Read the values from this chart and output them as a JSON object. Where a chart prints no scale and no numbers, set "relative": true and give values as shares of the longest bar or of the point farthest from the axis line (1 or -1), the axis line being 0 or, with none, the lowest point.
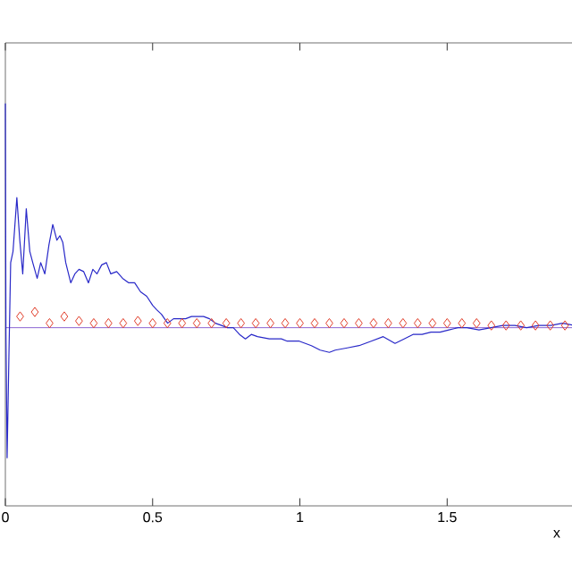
{
  "chart_data": {
    "type": "line",
    "relative": true,
    "xlabel": "x",
    "xlim": [
      0,
      1.93
    ],
    "xticks": [
      0,
      0.5,
      1,
      1.5
    ],
    "series": [
      {
        "color": "#2828c8",
        "marker": "none",
        "x": [
          0,
          0.002,
          0.006,
          0.012,
          0.018,
          0.026,
          0.039,
          0.049,
          0.059,
          0.071,
          0.083,
          0.093,
          0.108,
          0.12,
          0.134,
          0.148,
          0.161,
          0.175,
          0.185,
          0.195,
          0.205,
          0.222,
          0.236,
          0.25,
          0.266,
          0.282,
          0.297,
          0.311,
          0.327,
          0.343,
          0.358,
          0.378,
          0.398,
          0.419,
          0.439,
          0.459,
          0.48,
          0.5,
          0.514,
          0.53,
          0.551,
          0.571,
          0.591,
          0.612,
          0.632,
          0.652,
          0.673,
          0.693,
          0.713,
          0.734,
          0.754,
          0.774,
          0.795,
          0.815,
          0.835,
          0.856,
          0.896,
          0.937,
          0.957,
          0.998,
          1.039,
          1.069,
          1.1,
          1.12,
          1.161,
          1.201,
          1.242,
          1.283,
          1.323,
          1.354,
          1.384,
          1.415,
          1.445,
          1.476,
          1.506,
          1.537,
          1.567,
          1.608,
          1.649,
          1.689,
          1.73,
          1.77,
          1.811,
          1.852,
          1.892,
          1.93
        ],
        "values": [
          1,
          -0.03,
          -0.58,
          -0.13,
          0.29,
          0.34,
          0.58,
          0.39,
          0.24,
          0.53,
          0.34,
          0.29,
          0.22,
          0.29,
          0.24,
          0.37,
          0.46,
          0.39,
          0.41,
          0.38,
          0.29,
          0.2,
          0.24,
          0.26,
          0.25,
          0.2,
          0.26,
          0.24,
          0.28,
          0.29,
          0.24,
          0.25,
          0.22,
          0.2,
          0.2,
          0.16,
          0.14,
          0.1,
          0.08,
          0.06,
          0.02,
          0.04,
          0.04,
          0.04,
          0.05,
          0.05,
          0.05,
          0.04,
          0.02,
          0.01,
          0.0,
          0.0,
          -0.03,
          -0.05,
          -0.03,
          -0.04,
          -0.05,
          -0.05,
          -0.06,
          -0.06,
          -0.08,
          -0.1,
          -0.11,
          -0.1,
          -0.09,
          -0.08,
          -0.06,
          -0.04,
          -0.07,
          -0.05,
          -0.03,
          -0.03,
          -0.02,
          -0.02,
          -0.01,
          0.0,
          0.0,
          -0.01,
          0.0,
          0.01,
          0.01,
          0.0,
          0.01,
          0.01,
          0.02,
          0.01
        ]
      },
      {
        "color": "#e03c28",
        "type": "scatter",
        "marker": "diamond",
        "x": [
          0.05,
          0.1,
          0.15,
          0.2,
          0.25,
          0.3,
          0.35,
          0.4,
          0.45,
          0.5,
          0.55,
          0.6,
          0.65,
          0.7,
          0.75,
          0.8,
          0.85,
          0.9,
          0.95,
          1.0,
          1.05,
          1.1,
          1.15,
          1.2,
          1.25,
          1.3,
          1.35,
          1.4,
          1.45,
          1.5,
          1.55,
          1.6,
          1.65,
          1.7,
          1.75,
          1.8,
          1.85,
          1.9
        ],
        "values": [
          0.05,
          0.07,
          0.02,
          0.05,
          0.03,
          0.02,
          0.02,
          0.02,
          0.03,
          0.02,
          0.02,
          0.02,
          0.02,
          0.02,
          0.02,
          0.02,
          0.02,
          0.02,
          0.02,
          0.02,
          0.02,
          0.02,
          0.02,
          0.02,
          0.02,
          0.02,
          0.02,
          0.02,
          0.02,
          0.02,
          0.02,
          0.02,
          0.01,
          0.01,
          0.01,
          0.01,
          0.01,
          0.01
        ]
      }
    ],
    "ref_lines": [
      {
        "axis": "y",
        "value": 0,
        "color": "#7040c8",
        "line_style": "solid"
      }
    ]
  }
}
